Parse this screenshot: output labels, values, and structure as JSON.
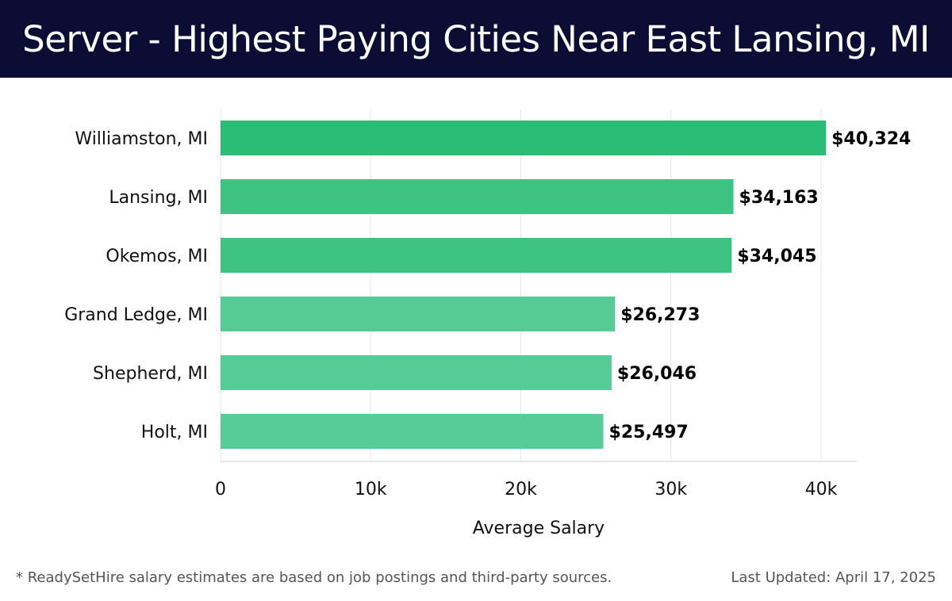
{
  "header": {
    "title": "Server - Highest Paying Cities Near East Lansing, MI"
  },
  "footer": {
    "note": "* ReadySetHire salary estimates are based on job postings and third-party sources.",
    "updated": "Last Updated: April 17, 2025"
  },
  "colors": {
    "header_bg": "#0c0d35",
    "bar_high": "#2bbd75",
    "bar_low": "#58cc96"
  },
  "chart_data": {
    "type": "bar",
    "orientation": "horizontal",
    "categories": [
      "Williamston, MI",
      "Lansing, MI",
      "Okemos, MI",
      "Grand Ledge, MI",
      "Shepherd, MI",
      "Holt, MI"
    ],
    "values": [
      40324,
      34163,
      34045,
      26273,
      26046,
      25497
    ],
    "data_labels": [
      "$40,324",
      "$34,163",
      "$34,045",
      "$26,273",
      "$26,046",
      "$25,497"
    ],
    "xlabel": "Average Salary",
    "ylabel": "",
    "xlim": [
      0,
      42500
    ],
    "xticks": [
      0,
      10000,
      20000,
      30000,
      40000
    ],
    "xtick_labels": [
      "0",
      "10k",
      "20k",
      "30k",
      "40k"
    ],
    "grid": true
  }
}
